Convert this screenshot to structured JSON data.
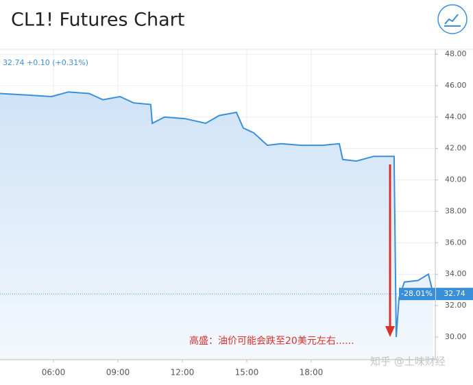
{
  "chart_data": {
    "type": "area",
    "title": "CL1! Futures Chart",
    "legend_text": "32.74 +0.10 (+0.31%)",
    "x": [
      3.51,
      4.79,
      5.9,
      6.7,
      7.66,
      8.3,
      9.1,
      9.73,
      10.53,
      10.6,
      11.17,
      12.13,
      13.09,
      13.72,
      14.52,
      14.84,
      15.32,
      15.96,
      16.6,
      17.55,
      18.51,
      19.31,
      19.47,
      20.11,
      20.91,
      21.86,
      21.96,
      22.09,
      22.34,
      22.98,
      23.46,
      23.68
    ],
    "series": [
      {
        "color": "#3a8fd9",
        "values": [
          45.5,
          45.4,
          45.3,
          45.6,
          45.5,
          45.1,
          45.3,
          44.9,
          44.8,
          43.6,
          44.0,
          43.9,
          43.6,
          44.1,
          44.3,
          43.3,
          43.0,
          42.2,
          42.3,
          42.2,
          42.2,
          42.3,
          41.3,
          41.2,
          41.5,
          41.5,
          30.0,
          32.5,
          33.5,
          33.6,
          34.0,
          32.74
        ]
      }
    ],
    "xlim": [
      3.51,
      23.78
    ],
    "ylim": [
      28.56,
      48.31
    ],
    "xticks": [
      {
        "value": 6,
        "label": "06:00"
      },
      {
        "value": 9,
        "label": "09:00"
      },
      {
        "value": 12,
        "label": "12:00"
      },
      {
        "value": 15,
        "label": "15:00"
      },
      {
        "value": 18,
        "label": "18:00"
      }
    ],
    "yticks": [
      {
        "value": 30,
        "label": "30.00"
      },
      {
        "value": 32,
        "label": "32.00"
      },
      {
        "value": 34,
        "label": "34.00"
      },
      {
        "value": 36,
        "label": "36.00"
      },
      {
        "value": 38,
        "label": "38.00"
      },
      {
        "value": 40,
        "label": "40.00"
      },
      {
        "value": 42,
        "label": "42.00"
      },
      {
        "value": 44,
        "label": "44.00"
      },
      {
        "value": 46,
        "label": "46.00"
      },
      {
        "value": 48,
        "label": "48.00"
      }
    ],
    "price_line": {
      "value": 32.74,
      "label": "32.74"
    },
    "change_badge": "-28.01%",
    "annotation": "高盛：油价可能会跌至20美元左右......",
    "watermark": "知乎 @土味财经",
    "grid": true
  }
}
